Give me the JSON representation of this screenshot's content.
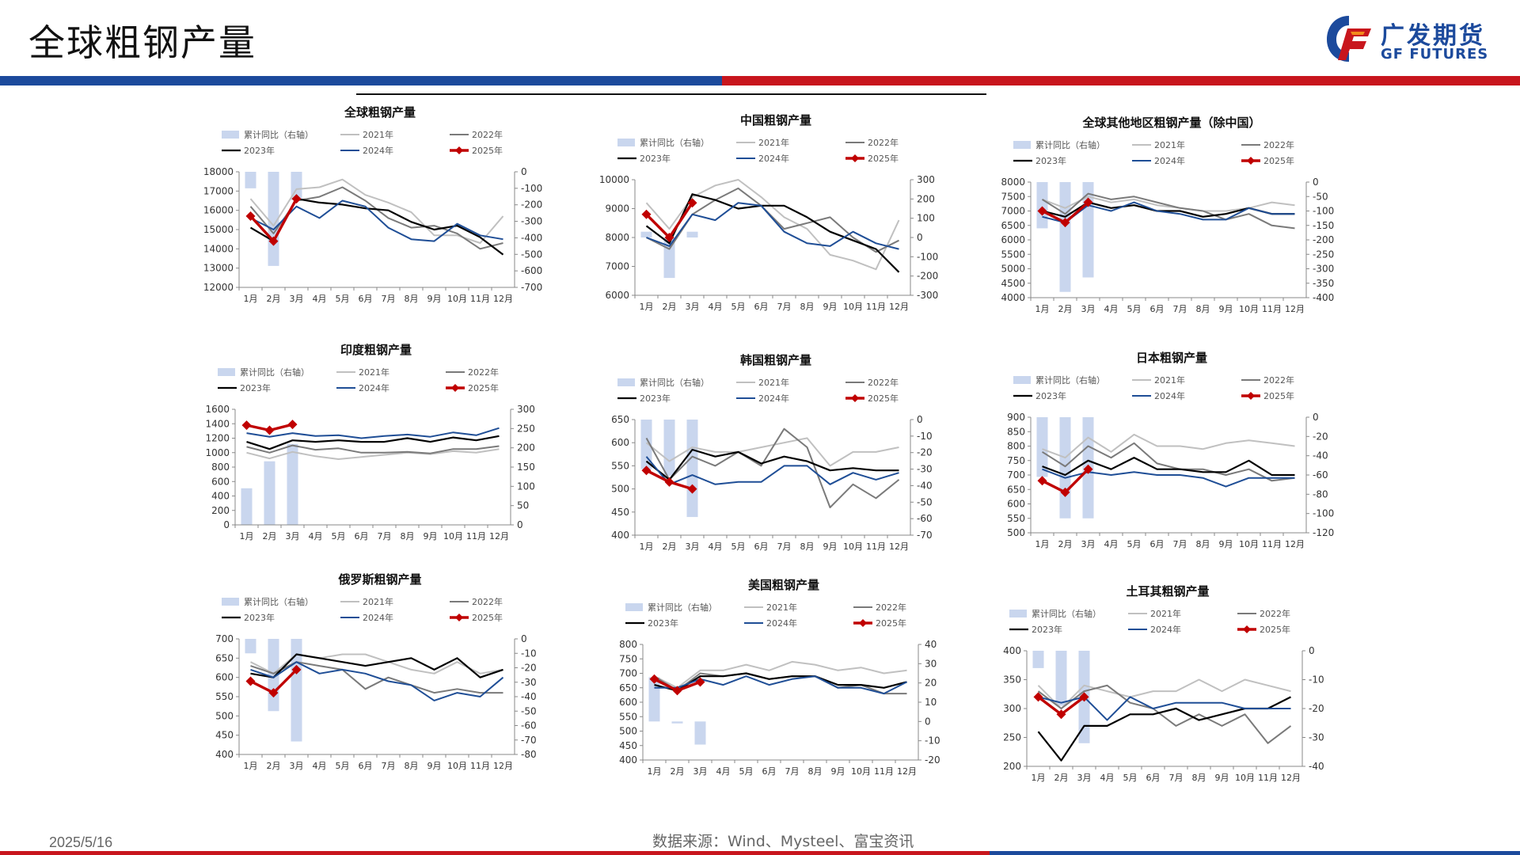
{
  "header": {
    "title": "全球粗钢产量"
  },
  "logo": {
    "name_cn": "广发期货",
    "name_en": "GF FUTURES",
    "icon": "gf-logo-icon"
  },
  "footer": {
    "date": "2025/5/16",
    "source": "数据来源：Wind、Mysteel、富宝资讯"
  },
  "colors": {
    "bar": "#c9d6ee",
    "y2021": "#c0c0c0",
    "y2022": "#7a7a7a",
    "y2023": "#000000",
    "y2024": "#1f4e96",
    "y2025": "#c00000",
    "brand_blue": "#1c4a9c",
    "brand_red": "#c8161d"
  },
  "legend_labels": [
    "累计同比（右轴）",
    "2021年",
    "2022年",
    "2023年",
    "2024年",
    "2025年"
  ],
  "months": [
    "1月",
    "2月",
    "3月",
    "4月",
    "5月",
    "6月",
    "7月",
    "8月",
    "9月",
    "10月",
    "11月",
    "12月"
  ],
  "chart_data": [
    {
      "type": "line",
      "title": "全球粗钢产量",
      "ylim": [
        12000,
        18000
      ],
      "yticks": [
        12000,
        13000,
        14000,
        15000,
        16000,
        17000,
        18000
      ],
      "y2lim": [
        -700,
        0
      ],
      "y2ticks": [
        0,
        -100,
        -200,
        -300,
        -400,
        -500,
        -600,
        -700
      ],
      "bars": [
        -100,
        -570,
        -170
      ],
      "series": [
        {
          "name": "2021年",
          "values": [
            16600,
            15200,
            17100,
            17200,
            17600,
            16800,
            16400,
            15900,
            14700,
            14700,
            14300,
            15700
          ]
        },
        {
          "name": "2022年",
          "values": [
            16200,
            14800,
            16500,
            16700,
            17200,
            16500,
            15600,
            15100,
            15200,
            14800,
            14000,
            14300
          ]
        },
        {
          "name": "2023年",
          "values": [
            15100,
            14400,
            16600,
            16400,
            16300,
            16100,
            16000,
            15400,
            15000,
            15200,
            14600,
            13700
          ]
        },
        {
          "name": "2024年",
          "values": [
            15600,
            15000,
            16200,
            15600,
            16500,
            16200,
            15100,
            14500,
            14400,
            15300,
            14700,
            14500
          ]
        },
        {
          "name": "2025年",
          "values": [
            15700,
            14400,
            16600
          ]
        }
      ]
    },
    {
      "type": "line",
      "title": "中国粗钢产量",
      "ylim": [
        6000,
        10000
      ],
      "yticks": [
        6000,
        7000,
        8000,
        9000,
        10000
      ],
      "y2lim": [
        -300,
        300
      ],
      "y2ticks": [
        300,
        200,
        100,
        0,
        -100,
        -200,
        -300
      ],
      "bars": [
        30,
        -210,
        30
      ],
      "series": [
        {
          "name": "2021年",
          "values": [
            9200,
            8300,
            9400,
            9800,
            10000,
            9400,
            8700,
            8300,
            7400,
            7200,
            6900,
            8600
          ]
        },
        {
          "name": "2022年",
          "values": [
            8000,
            7600,
            8800,
            9300,
            9700,
            9100,
            8300,
            8500,
            8700,
            8000,
            7500,
            7900
          ]
        },
        {
          "name": "2023年",
          "values": [
            8400,
            7800,
            9500,
            9300,
            9000,
            9100,
            9100,
            8700,
            8200,
            7900,
            7600,
            6800
          ]
        },
        {
          "name": "2024年",
          "values": [
            8000,
            7700,
            8800,
            8600,
            9200,
            9100,
            8200,
            7800,
            7700,
            8200,
            7800,
            7600
          ]
        },
        {
          "name": "2025年",
          "values": [
            8800,
            8000,
            9200
          ]
        }
      ]
    },
    {
      "type": "line",
      "title": "全球其他地区粗钢产量（除中国）",
      "ylim": [
        4000,
        8000
      ],
      "yticks": [
        4000,
        4500,
        5000,
        5500,
        6000,
        6500,
        7000,
        7500,
        8000
      ],
      "y2lim": [
        -400,
        0
      ],
      "y2ticks": [
        0,
        -50,
        -100,
        -150,
        -200,
        -250,
        -300,
        -350,
        -400
      ],
      "bars": [
        -160,
        -380,
        -330
      ],
      "series": [
        {
          "name": "2021年",
          "values": [
            7400,
            7100,
            7500,
            7300,
            7400,
            7200,
            7100,
            7000,
            7000,
            7100,
            7300,
            7200
          ]
        },
        {
          "name": "2022年",
          "values": [
            7400,
            6900,
            7600,
            7400,
            7500,
            7300,
            7100,
            7000,
            6700,
            6900,
            6500,
            6400
          ]
        },
        {
          "name": "2023年",
          "values": [
            7000,
            6800,
            7300,
            7100,
            7200,
            7000,
            7000,
            6800,
            6900,
            7100,
            6900,
            6900
          ]
        },
        {
          "name": "2024年",
          "values": [
            6800,
            6600,
            7200,
            7000,
            7300,
            7000,
            6900,
            6700,
            6700,
            7100,
            6900,
            6900
          ]
        },
        {
          "name": "2025年",
          "values": [
            7000,
            6600,
            7300
          ]
        }
      ]
    },
    {
      "type": "line",
      "title": "印度粗钢产量",
      "ylim": [
        0,
        1600
      ],
      "yticks": [
        0,
        200,
        400,
        600,
        800,
        1000,
        1200,
        1400,
        1600
      ],
      "y2lim": [
        0,
        300
      ],
      "y2ticks": [
        0,
        50,
        100,
        150,
        200,
        250,
        300
      ],
      "bars": [
        95,
        165,
        210
      ],
      "series": [
        {
          "name": "2021年",
          "values": [
            1000,
            920,
            1010,
            950,
            910,
            940,
            970,
            1000,
            980,
            1020,
            1000,
            1050
          ]
        },
        {
          "name": "2022年",
          "values": [
            1080,
            1000,
            1100,
            1040,
            1060,
            1000,
            1000,
            1010,
            990,
            1050,
            1050,
            1090
          ]
        },
        {
          "name": "2023年",
          "values": [
            1150,
            1050,
            1170,
            1150,
            1170,
            1150,
            1150,
            1200,
            1150,
            1210,
            1170,
            1230
          ]
        },
        {
          "name": "2024年",
          "values": [
            1270,
            1220,
            1270,
            1230,
            1240,
            1200,
            1230,
            1250,
            1220,
            1280,
            1240,
            1340
          ]
        },
        {
          "name": "2025年",
          "values": [
            1380,
            1310,
            1390
          ]
        }
      ]
    },
    {
      "type": "line",
      "title": "韩国粗钢产量",
      "ylim": [
        400,
        650
      ],
      "yticks": [
        400,
        450,
        500,
        550,
        600,
        650
      ],
      "y2lim": [
        -70,
        0
      ],
      "y2ticks": [
        0,
        -10,
        -20,
        -30,
        -40,
        -50,
        -60,
        -70
      ],
      "bars": [
        -30,
        -34,
        -59
      ],
      "series": [
        {
          "name": "2021年",
          "values": [
            600,
            560,
            590,
            580,
            580,
            590,
            600,
            610,
            550,
            580,
            580,
            590
          ]
        },
        {
          "name": "2022年",
          "values": [
            610,
            520,
            570,
            550,
            580,
            550,
            630,
            590,
            460,
            510,
            480,
            520
          ]
        },
        {
          "name": "2023年",
          "values": [
            560,
            520,
            585,
            570,
            580,
            555,
            570,
            560,
            540,
            545,
            540,
            540
          ]
        },
        {
          "name": "2024年",
          "values": [
            570,
            510,
            530,
            510,
            515,
            515,
            550,
            550,
            510,
            535,
            520,
            535
          ]
        },
        {
          "name": "2025年",
          "values": [
            540,
            515,
            500
          ]
        }
      ]
    },
    {
      "type": "line",
      "title": "日本粗钢产量",
      "ylim": [
        500,
        900
      ],
      "yticks": [
        500,
        550,
        600,
        650,
        700,
        750,
        800,
        850,
        900
      ],
      "y2lim": [
        -120,
        0
      ],
      "y2ticks": [
        0,
        -20,
        -40,
        -60,
        -80,
        -100,
        -120
      ],
      "bars": [
        -62,
        -105,
        -105
      ],
      "series": [
        {
          "name": "2021年",
          "values": [
            790,
            760,
            830,
            780,
            840,
            800,
            800,
            790,
            810,
            820,
            810,
            800
          ]
        },
        {
          "name": "2022年",
          "values": [
            780,
            730,
            800,
            760,
            810,
            740,
            720,
            720,
            700,
            720,
            680,
            690
          ]
        },
        {
          "name": "2023年",
          "values": [
            730,
            700,
            750,
            720,
            760,
            720,
            720,
            710,
            710,
            750,
            700,
            700
          ]
        },
        {
          "name": "2024年",
          "values": [
            720,
            690,
            710,
            700,
            710,
            700,
            700,
            690,
            660,
            690,
            690,
            690
          ]
        },
        {
          "name": "2025年",
          "values": [
            680,
            640,
            720
          ]
        }
      ]
    },
    {
      "type": "line",
      "title": "俄罗斯粗钢产量",
      "ylim": [
        400,
        700
      ],
      "yticks": [
        400,
        450,
        500,
        550,
        600,
        650,
        700
      ],
      "y2lim": [
        -80,
        0
      ],
      "y2ticks": [
        0,
        -10,
        -20,
        -30,
        -40,
        -50,
        -60,
        -70,
        -80
      ],
      "bars": [
        -10,
        -50,
        -71
      ],
      "series": [
        {
          "name": "2021年",
          "values": [
            640,
            610,
            660,
            650,
            660,
            660,
            640,
            620,
            610,
            640,
            610,
            620
          ]
        },
        {
          "name": "2022年",
          "values": [
            630,
            610,
            640,
            630,
            620,
            570,
            600,
            580,
            560,
            570,
            560,
            560
          ]
        },
        {
          "name": "2023年",
          "values": [
            610,
            600,
            660,
            650,
            640,
            630,
            640,
            650,
            620,
            650,
            600,
            620
          ]
        },
        {
          "name": "2024年",
          "values": [
            620,
            600,
            640,
            610,
            620,
            610,
            590,
            580,
            540,
            560,
            550,
            600
          ]
        },
        {
          "name": "2025年",
          "values": [
            590,
            560,
            620
          ]
        }
      ]
    },
    {
      "type": "line",
      "title": "美国粗钢产量",
      "ylim": [
        400,
        800
      ],
      "yticks": [
        400,
        450,
        500,
        550,
        600,
        650,
        700,
        750,
        800
      ],
      "y2lim": [
        -20,
        40
      ],
      "y2ticks": [
        40,
        30,
        20,
        10,
        0,
        -10,
        -20
      ],
      "bars": [
        23,
        -1,
        -12
      ],
      "series": [
        {
          "name": "2021年",
          "values": [
            690,
            650,
            710,
            710,
            730,
            710,
            740,
            730,
            710,
            720,
            700,
            710
          ]
        },
        {
          "name": "2022年",
          "values": [
            690,
            640,
            700,
            690,
            700,
            680,
            690,
            690,
            650,
            660,
            630,
            630
          ]
        },
        {
          "name": "2023年",
          "values": [
            660,
            640,
            690,
            690,
            700,
            680,
            690,
            690,
            660,
            660,
            650,
            670
          ]
        },
        {
          "name": "2024年",
          "values": [
            650,
            650,
            680,
            660,
            690,
            660,
            680,
            690,
            650,
            650,
            630,
            670
          ]
        },
        {
          "name": "2025年",
          "values": [
            680,
            640,
            670
          ]
        }
      ]
    },
    {
      "type": "line",
      "title": "土耳其粗钢产量",
      "ylim": [
        200,
        400
      ],
      "yticks": [
        200,
        250,
        300,
        350,
        400
      ],
      "y2lim": [
        -40,
        0
      ],
      "y2ticks": [
        0,
        -10,
        -20,
        -30,
        -40
      ],
      "bars": [
        -6,
        -19,
        -32
      ],
      "series": [
        {
          "name": "2021年",
          "values": [
            340,
            300,
            340,
            330,
            320,
            330,
            330,
            350,
            330,
            350,
            340,
            330
          ]
        },
        {
          "name": "2022年",
          "values": [
            330,
            300,
            330,
            340,
            310,
            300,
            270,
            290,
            270,
            290,
            240,
            270
          ]
        },
        {
          "name": "2023年",
          "values": [
            260,
            210,
            270,
            270,
            290,
            290,
            300,
            280,
            290,
            300,
            300,
            320
          ]
        },
        {
          "name": "2024年",
          "values": [
            320,
            310,
            320,
            280,
            320,
            300,
            310,
            310,
            310,
            300,
            300,
            300
          ]
        },
        {
          "name": "2025年",
          "values": [
            320,
            290,
            320
          ]
        }
      ]
    }
  ]
}
